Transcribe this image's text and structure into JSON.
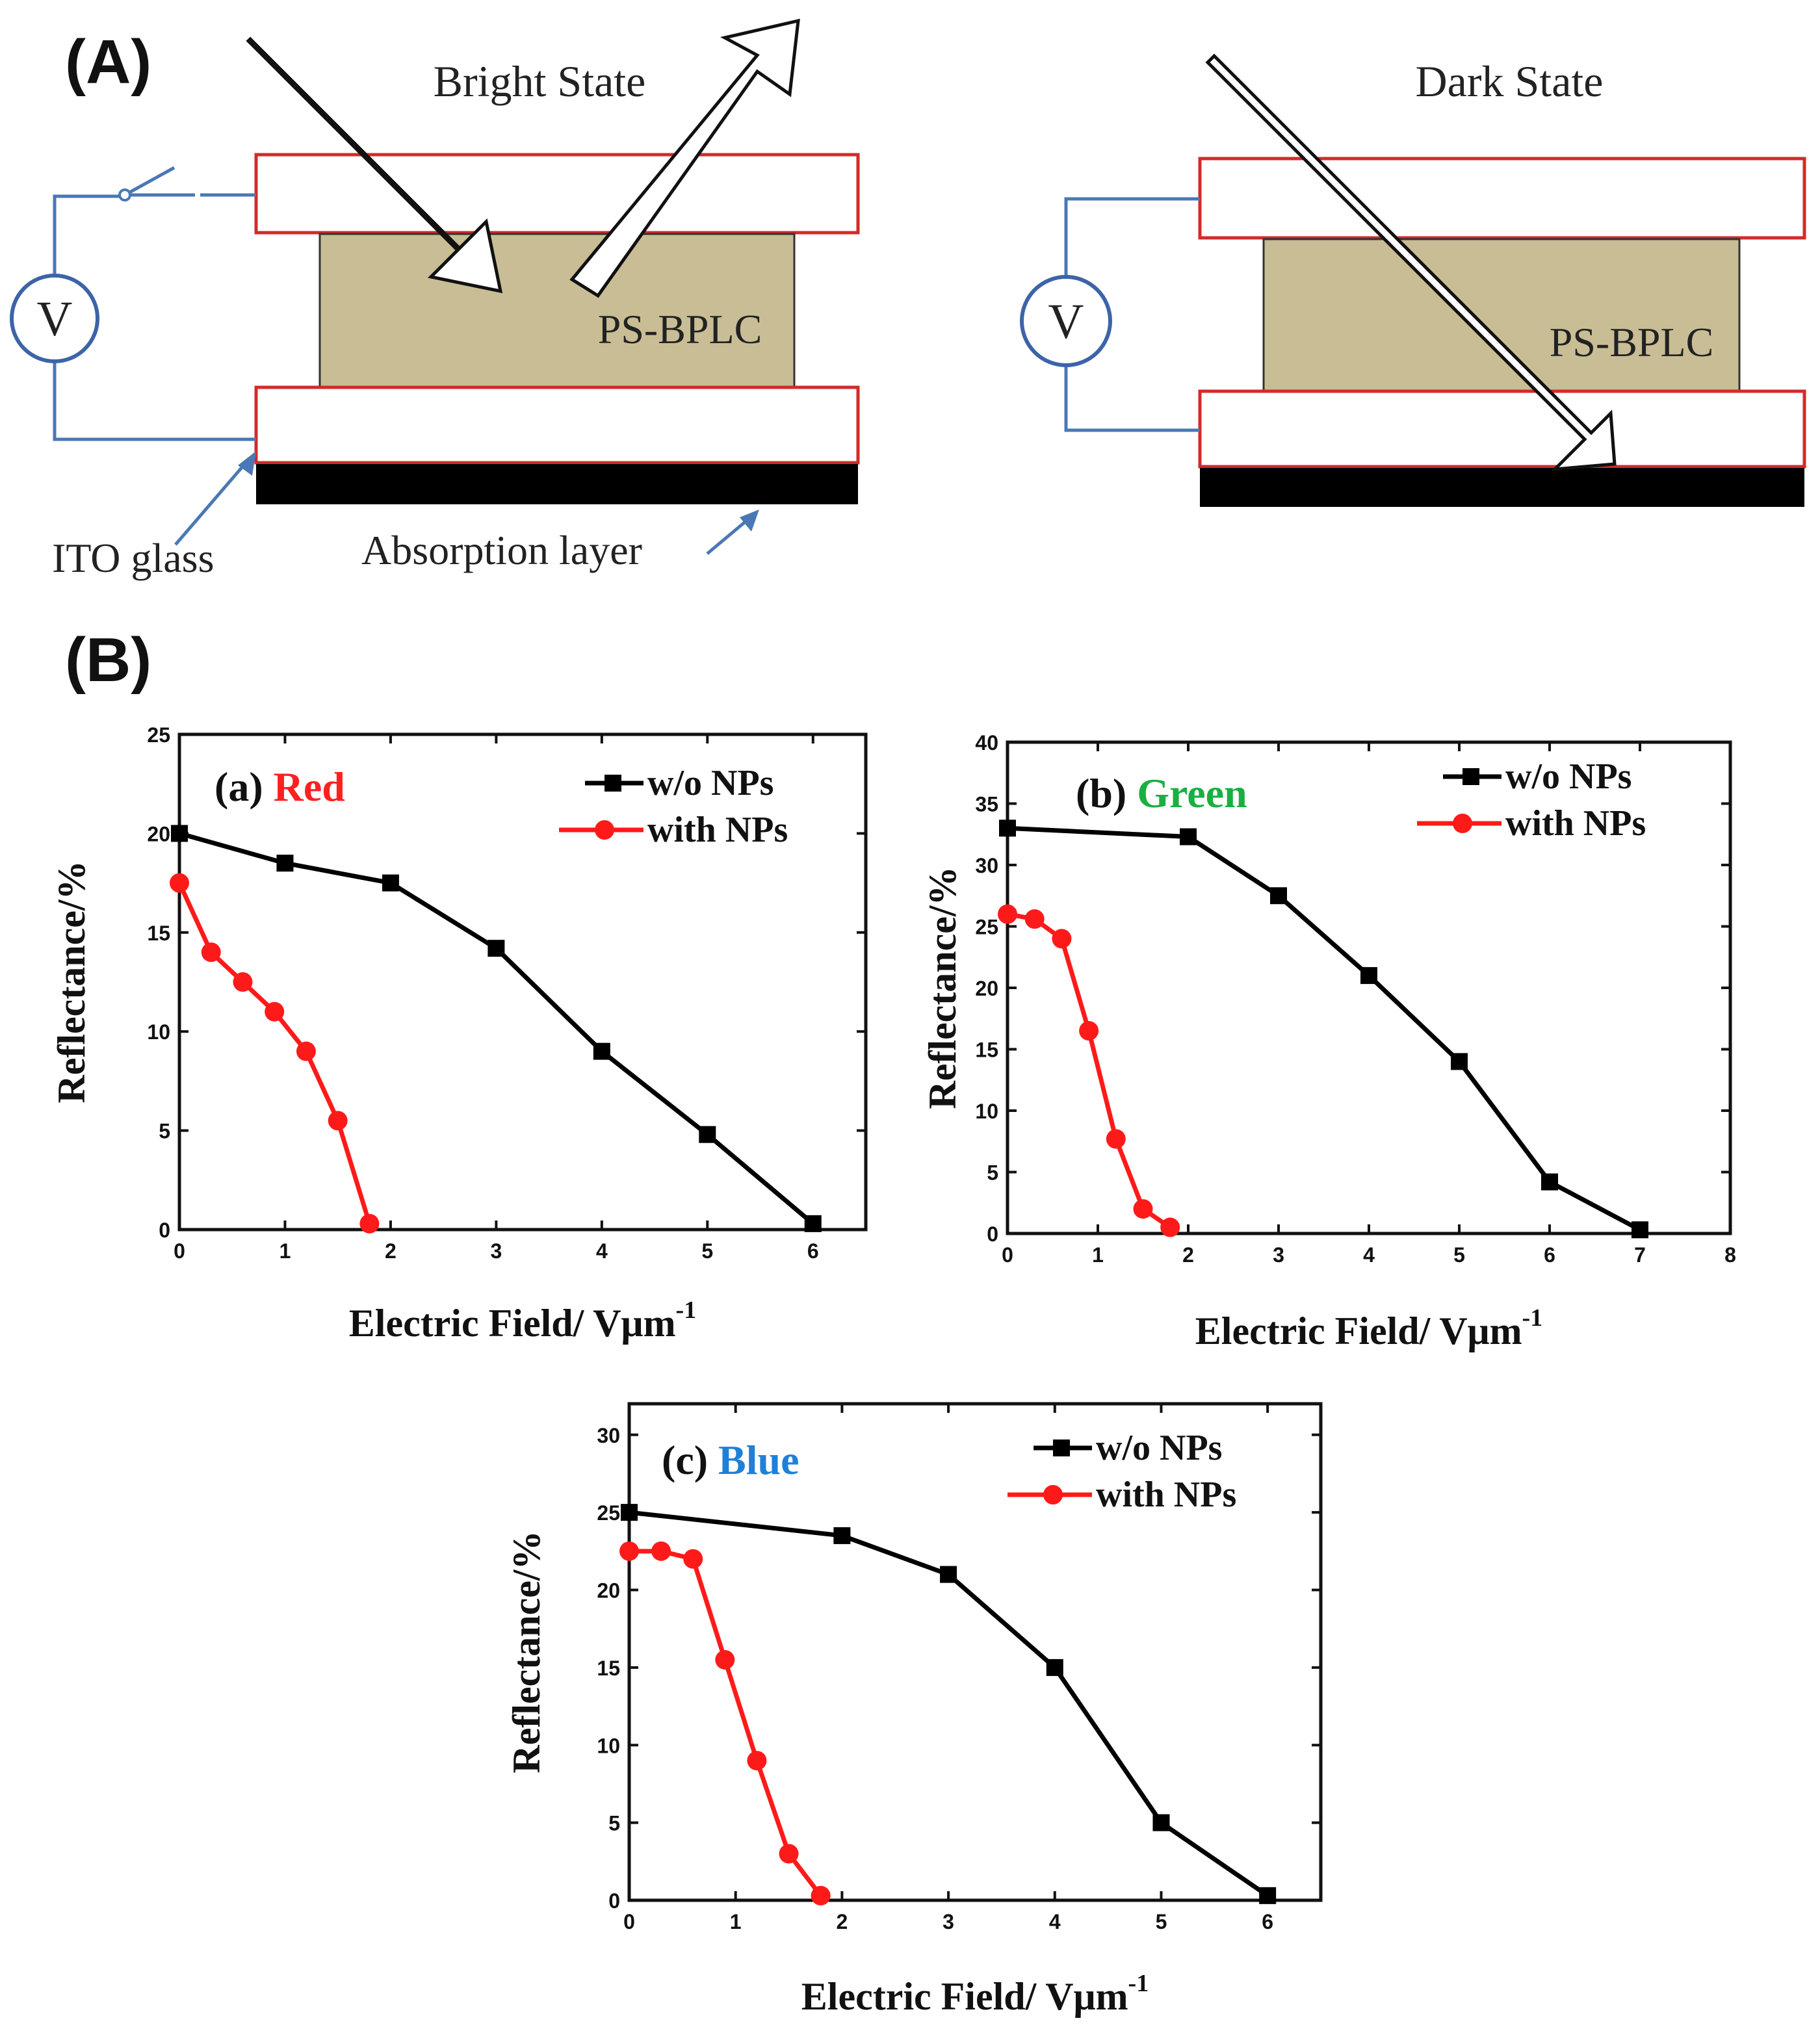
{
  "panel_labels": {
    "a": "(A)",
    "b": "(B)"
  },
  "diagram": {
    "bright_title": "Bright State",
    "dark_title": "Dark State",
    "material_label": "PS-BPLC",
    "voltage_symbol": "V",
    "ito_label": "ITO glass",
    "absorption_label": "Absorption layer",
    "colors": {
      "cell_outline": "#d42a2a",
      "material_fill": "#c8bd95",
      "wire": "#4a78b4",
      "absorber": "#000000"
    }
  },
  "chart_data": [
    {
      "type": "line",
      "title_prefix": "(a)",
      "title_color_word": "Red",
      "title_color": "#ff2020",
      "xlabel": "Electric Field/ Vμm",
      "xlabel_sup": "-1",
      "ylabel": "Reflectance/%",
      "xlim": [
        0,
        6.5
      ],
      "ylim": [
        0,
        25
      ],
      "xticks": [
        0,
        1,
        2,
        3,
        4,
        5,
        6
      ],
      "yticks": [
        0,
        5,
        10,
        15,
        20,
        25
      ],
      "series": [
        {
          "name": "w/o NPs",
          "color": "#000000",
          "marker": "square",
          "x": [
            0,
            1,
            2,
            3,
            4,
            5,
            6
          ],
          "y": [
            20,
            18.5,
            17.5,
            14.2,
            9,
            4.8,
            0.3
          ]
        },
        {
          "name": "with NPs",
          "color": "#ff1a1a",
          "marker": "circle",
          "x": [
            0,
            0.3,
            0.6,
            0.9,
            1.2,
            1.5,
            1.8
          ],
          "y": [
            17.5,
            14,
            12.5,
            11,
            9,
            5.5,
            0.3
          ]
        }
      ]
    },
    {
      "type": "line",
      "title_prefix": "(b)",
      "title_color_word": "Green",
      "title_color": "#18b040",
      "xlabel": "Electric Field/ Vμm",
      "xlabel_sup": "-1",
      "ylabel": "Reflectance/%",
      "xlim": [
        0,
        8
      ],
      "ylim": [
        0,
        40
      ],
      "xticks": [
        0,
        1,
        2,
        3,
        4,
        5,
        6,
        7,
        8
      ],
      "yticks": [
        0,
        5,
        10,
        15,
        20,
        25,
        30,
        35,
        40
      ],
      "series": [
        {
          "name": "w/o NPs",
          "color": "#000000",
          "marker": "square",
          "x": [
            0,
            2,
            3,
            4,
            5,
            6,
            7
          ],
          "y": [
            33,
            32.3,
            27.5,
            21,
            14,
            4.2,
            0.3
          ]
        },
        {
          "name": "with NPs",
          "color": "#ff1a1a",
          "marker": "circle",
          "x": [
            0,
            0.3,
            0.6,
            0.9,
            1.2,
            1.5,
            1.8
          ],
          "y": [
            26,
            25.6,
            24,
            16.5,
            7.7,
            2,
            0.5
          ]
        }
      ]
    },
    {
      "type": "line",
      "title_prefix": "(c)",
      "title_color_word": "Blue",
      "title_color": "#2080d8",
      "xlabel": "Electric Field/ Vμm",
      "xlabel_sup": "-1",
      "ylabel": "Reflectance/%",
      "xlim": [
        0,
        6.5
      ],
      "ylim": [
        0,
        32
      ],
      "xticks": [
        0,
        1,
        2,
        3,
        4,
        5,
        6
      ],
      "yticks": [
        0,
        5,
        10,
        15,
        20,
        25,
        30
      ],
      "series": [
        {
          "name": "w/o NPs",
          "color": "#000000",
          "marker": "square",
          "x": [
            0,
            2,
            3,
            4,
            5,
            6
          ],
          "y": [
            25,
            23.5,
            21,
            15,
            5,
            0.3
          ]
        },
        {
          "name": "with NPs",
          "color": "#ff1a1a",
          "marker": "circle",
          "x": [
            0,
            0.3,
            0.6,
            0.9,
            1.2,
            1.5,
            1.8
          ],
          "y": [
            22.5,
            22.5,
            22,
            15.5,
            9,
            3,
            0.3
          ]
        }
      ]
    }
  ]
}
